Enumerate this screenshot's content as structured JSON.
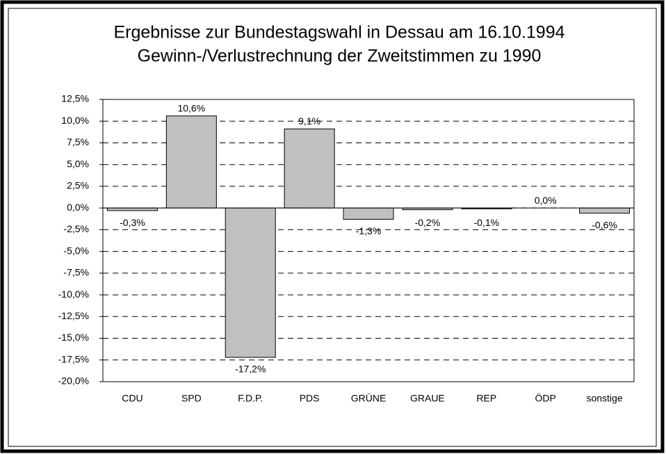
{
  "chart_data": {
    "type": "bar",
    "title": [
      "Ergebnisse zur Bundestagswahl in Dessau am 16.10.1994",
      "Gewinn-/Verlustrechnung der Zweitstimmen zu 1990"
    ],
    "categories": [
      "CDU",
      "SPD",
      "F.D.P.",
      "PDS",
      "GRÜNE",
      "GRAUE",
      "REP",
      "ÖDP",
      "sonstige"
    ],
    "values": [
      -0.3,
      10.6,
      -17.2,
      9.1,
      -1.3,
      -0.2,
      -0.1,
      0.0,
      -0.6
    ],
    "value_labels": [
      "-0,3%",
      "10,6%",
      "-17,2%",
      "9,1%",
      "-1,3%",
      "-0,2%",
      "-0,1%",
      "0,0%",
      "-0,6%"
    ],
    "color": "#c0c0c0",
    "ylim": [
      -20,
      12.5
    ],
    "yticks": [
      {
        "value": 12.5,
        "label": "12,5%"
      },
      {
        "value": 10,
        "label": "10,0%"
      },
      {
        "value": 7.5,
        "label": "7,5%"
      },
      {
        "value": 5,
        "label": "5,0%"
      },
      {
        "value": 2.5,
        "label": "2,5%"
      },
      {
        "value": 0,
        "label": "0,0%"
      },
      {
        "value": -2.5,
        "label": "-2,5%"
      },
      {
        "value": -5,
        "label": "-5,0%"
      },
      {
        "value": -7.5,
        "label": "-7,5%"
      },
      {
        "value": -10,
        "label": "-10,0%"
      },
      {
        "value": -12.5,
        "label": "-12,5%"
      },
      {
        "value": -15,
        "label": "-15,0%"
      },
      {
        "value": -17.5,
        "label": "-17,5%"
      },
      {
        "value": -20,
        "label": "-20,0%"
      }
    ],
    "grid": true
  }
}
